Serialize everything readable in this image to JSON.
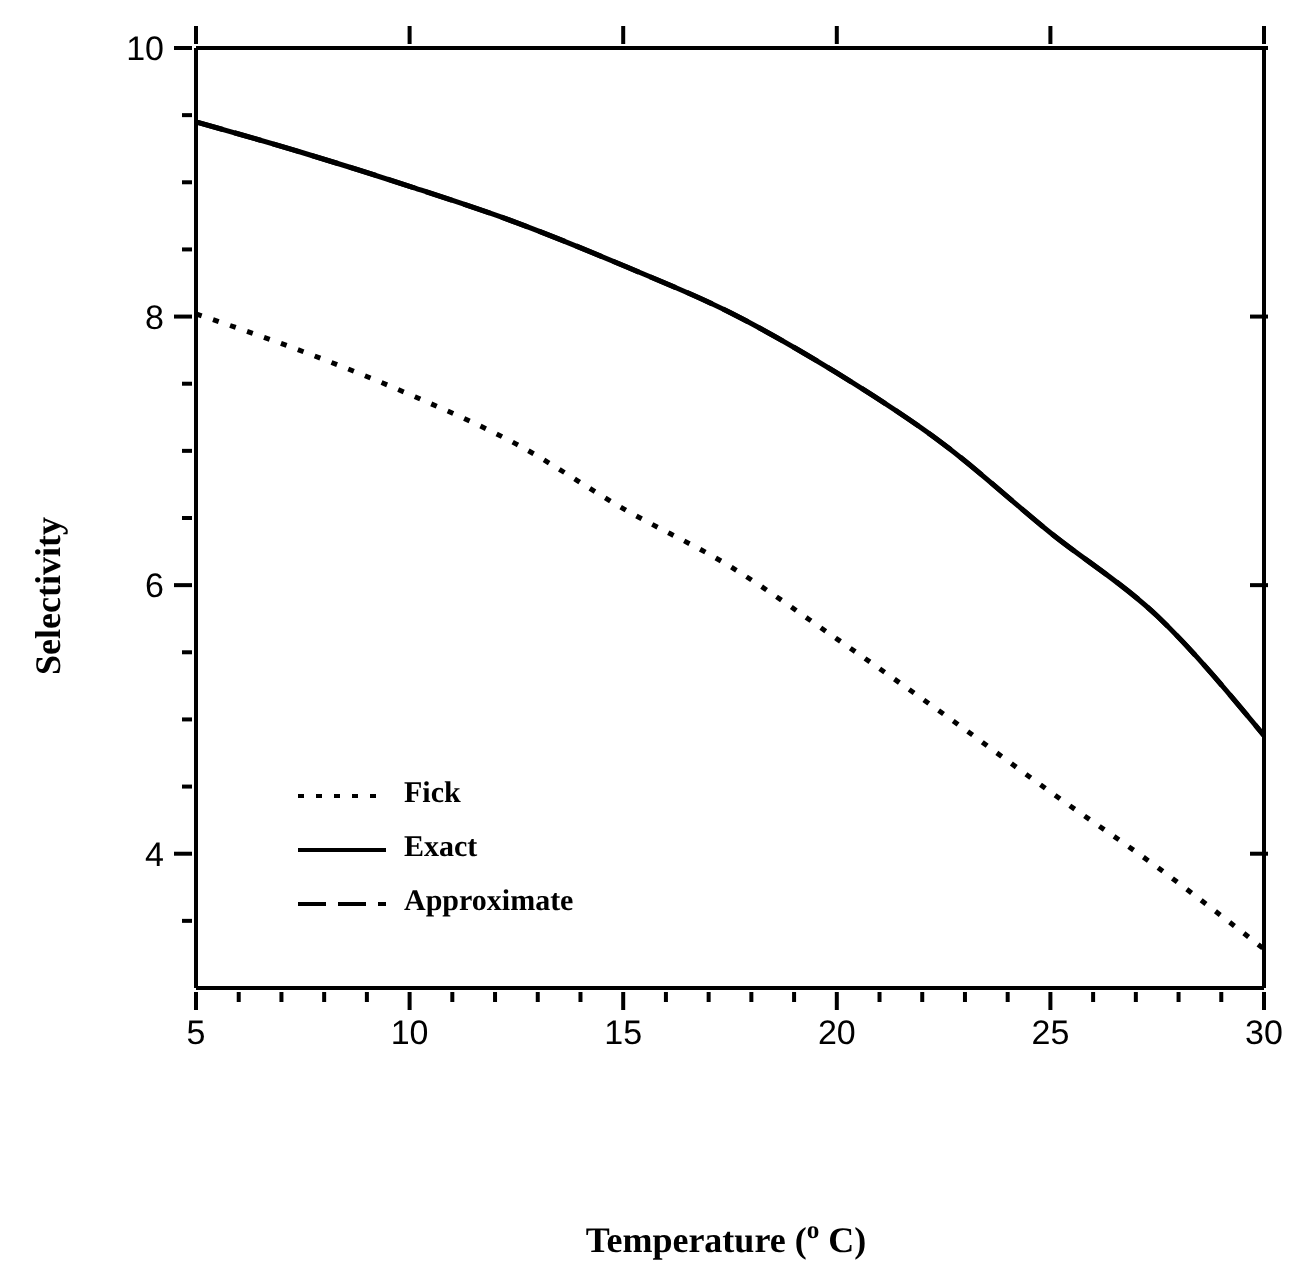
{
  "chart_data": {
    "type": "line",
    "xlabel": "Temperature ($^{o}$C)",
    "ylabel": "Selectivity",
    "x": [
      5,
      7.5,
      10,
      12.5,
      15,
      17.5,
      20,
      22.5,
      25,
      27.5,
      30
    ],
    "series": [
      {
        "name": "Fick",
        "color": "#000000",
        "line_style": "dotted",
        "values": [
          8.02,
          7.74,
          7.42,
          7.05,
          6.57,
          6.14,
          5.6,
          5.04,
          4.46,
          3.9,
          3.29
        ]
      },
      {
        "name": "Exact",
        "color": "#000000",
        "line_style": "solid",
        "values": [
          9.45,
          9.22,
          8.97,
          8.7,
          8.38,
          8.03,
          7.58,
          7.05,
          6.39,
          5.77,
          4.88
        ]
      },
      {
        "name": "Approximate",
        "color": "#000000",
        "line_style": "dashed",
        "values": [
          9.45,
          9.22,
          8.97,
          8.7,
          8.38,
          8.03,
          7.58,
          7.05,
          6.39,
          5.77,
          4.88
        ]
      }
    ],
    "xlim": [
      5,
      30
    ],
    "xticks": [
      5,
      {
        "value": 6,
        "label": null
      },
      {
        "value": 7,
        "label": null
      },
      {
        "value": 8,
        "label": null
      },
      {
        "value": 9,
        "label": null
      },
      10,
      {
        "value": 11,
        "label": null
      },
      {
        "value": 12,
        "label": null
      },
      {
        "value": 13,
        "label": null
      },
      {
        "value": 14,
        "label": null
      },
      15,
      {
        "value": 16,
        "label": null
      },
      {
        "value": 17,
        "label": null
      },
      {
        "value": 18,
        "label": null
      },
      {
        "value": 19,
        "label": null
      },
      20,
      {
        "value": 21,
        "label": null
      },
      {
        "value": 22,
        "label": null
      },
      {
        "value": 23,
        "label": null
      },
      {
        "value": 24,
        "label": null
      },
      25,
      {
        "value": 26,
        "label": null
      },
      {
        "value": 27,
        "label": null
      },
      {
        "value": 28,
        "label": null
      },
      {
        "value": 29,
        "label": null
      },
      30
    ],
    "ylim": [
      3,
      10
    ],
    "yticks": [
      {
        "value": 3.5,
        "label": null
      },
      4,
      {
        "value": 4.5,
        "label": null
      },
      {
        "value": 5,
        "label": null
      },
      {
        "value": 5.5,
        "label": null
      },
      6,
      {
        "value": 6.5,
        "label": null
      },
      {
        "value": 7,
        "label": null
      },
      {
        "value": 7.5,
        "label": null
      },
      8,
      {
        "value": 8.5,
        "label": null
      },
      {
        "value": 9,
        "label": null
      },
      {
        "value": 9.5,
        "label": null
      },
      10
    ],
    "grid": false,
    "legend": "bottom left",
    "marker": "none"
  }
}
